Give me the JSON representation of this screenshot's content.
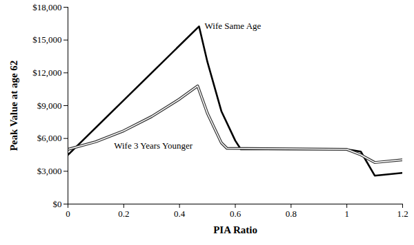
{
  "chart_data": {
    "type": "line",
    "x_label": "PIA Ratio",
    "y_label": "Peak Value at age 62",
    "xlim": [
      0,
      1.2
    ],
    "xticks": [
      0,
      0.2,
      0.4,
      0.6,
      0.8,
      1,
      1.2
    ],
    "ylim": [
      0,
      18000
    ],
    "yticks": [
      {
        "value": 0,
        "label": "$0"
      },
      {
        "value": 3000,
        "label": "$3,000"
      },
      {
        "value": 6000,
        "label": "$6,000"
      },
      {
        "value": 9000,
        "label": "$9,000"
      },
      {
        "value": 12000,
        "label": "$12,000"
      },
      {
        "value": 15000,
        "label": "$15,000"
      },
      {
        "value": 18000,
        "label": "$18,000"
      }
    ],
    "grid": false,
    "series": [
      {
        "name": "Wife Same Age",
        "color": "#000000",
        "line_style": "solid",
        "x": [
          0,
          0.47,
          0.5,
          0.55,
          0.6,
          0.62,
          1.0,
          1.05,
          1.1,
          1.2
        ],
        "values": [
          4500,
          16250,
          13000,
          8500,
          5800,
          5000,
          5000,
          4800,
          2600,
          2850
        ]
      },
      {
        "name": "Wife 3 Years Younger",
        "color": "#333333",
        "line_style": "double",
        "x": [
          0,
          0.1,
          0.2,
          0.3,
          0.4,
          0.465,
          0.5,
          0.55,
          0.57,
          1.0,
          1.05,
          1.1,
          1.2
        ],
        "values": [
          5000,
          5700,
          6700,
          8000,
          9600,
          10800,
          8300,
          5600,
          5100,
          5000,
          4500,
          3800,
          4050
        ]
      }
    ],
    "annotations": [
      {
        "text": "Wife Same Age",
        "x": 0.49,
        "y": 16300
      },
      {
        "text": "Wife 3 Years Younger",
        "x": 0.165,
        "y": 5300
      }
    ]
  }
}
